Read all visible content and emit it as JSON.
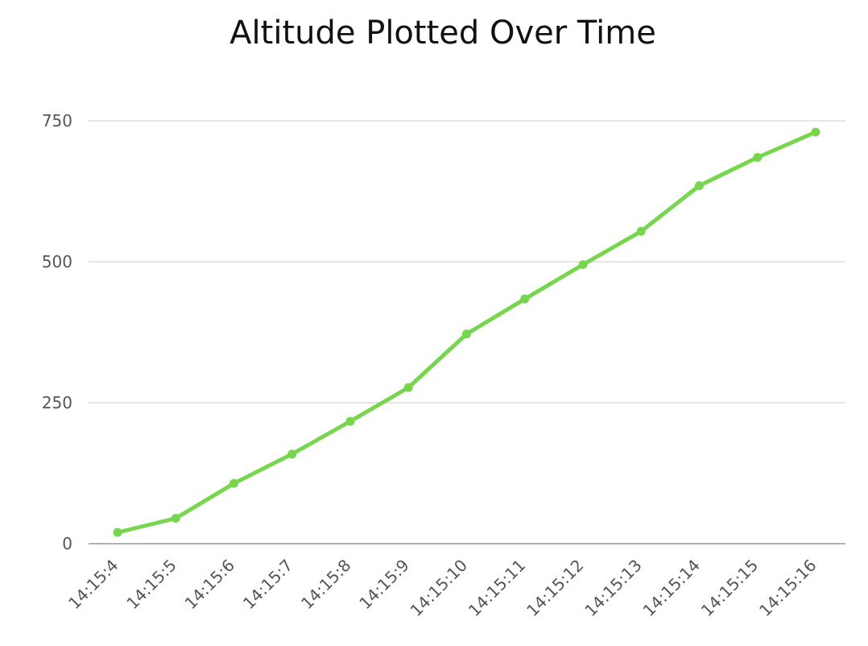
{
  "chart_data": {
    "type": "line",
    "title": "Altitude Plotted Over Time",
    "xlabel": "",
    "ylabel": "",
    "categories": [
      "14:15:4",
      "14:15:5",
      "14:15:6",
      "14:15:7",
      "14:15:8",
      "14:15:9",
      "14:15:10",
      "14:15:11",
      "14:15:12",
      "14:15:13",
      "14:15:14",
      "14:15:15",
      "14:15:16"
    ],
    "series": [
      {
        "values": [
          20,
          45,
          107,
          159,
          217,
          277,
          372,
          434,
          495,
          554,
          635,
          685,
          730
        ],
        "color": "#77d64e"
      }
    ],
    "yticks": [
      "0",
      "250",
      "500",
      "750"
    ],
    "ylim": [
      0,
      750
    ],
    "grid": true,
    "legend": "none"
  }
}
